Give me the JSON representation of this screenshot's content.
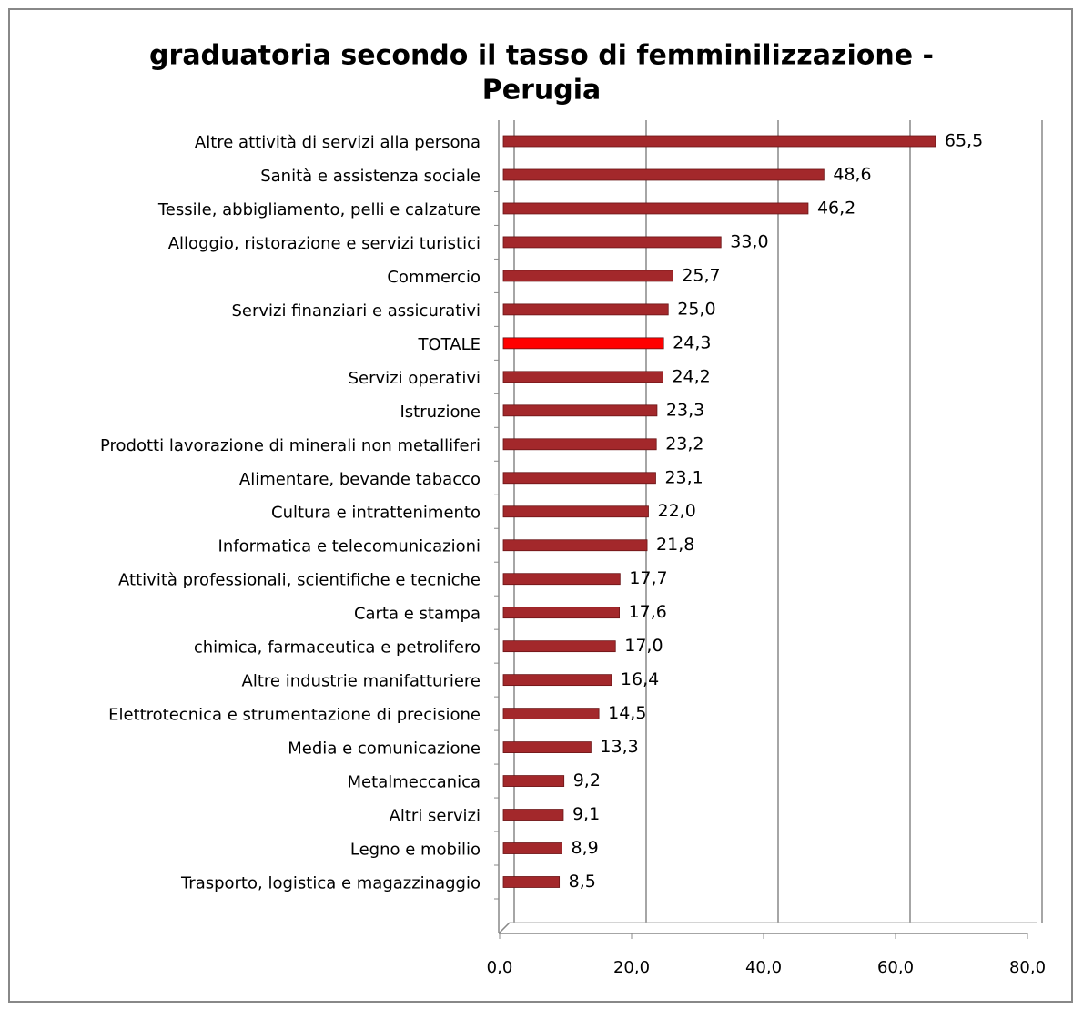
{
  "chart_data": {
    "type": "bar",
    "orientation": "horizontal",
    "title": [
      "graduatoria secondo il tasso di femminilizzazione -",
      "Perugia"
    ],
    "categories": [
      "Altre attività di servizi alla persona",
      "Sanità e assistenza sociale",
      "Tessile, abbigliamento, pelli e calzature",
      "Alloggio,  ristorazione e  servizi turistici",
      "Commercio",
      "Servizi finanziari e assicurativi",
      "TOTALE",
      "Servizi operativi",
      "Istruzione",
      "Prodotti lavorazione di minerali non metalliferi",
      "Alimentare, bevande tabacco",
      "Cultura e intrattenimento",
      "Informatica e telecomunicazioni",
      "Attività professionali, scientifiche e tecniche",
      "Carta e stampa",
      "chimica, farmaceutica e petrolifero",
      "Altre industrie manifatturiere",
      "Elettrotecnica  e strumentazione di precisione",
      "Media e comunicazione",
      "Metalmeccanica",
      "Altri servizi",
      "Legno e mobilio",
      "Trasporto, logistica e  magazzinaggio"
    ],
    "values": [
      65.5,
      48.6,
      46.2,
      33.0,
      25.7,
      25.0,
      24.3,
      24.2,
      23.3,
      23.2,
      23.1,
      22.0,
      21.8,
      17.7,
      17.6,
      17.0,
      16.4,
      14.5,
      13.3,
      9.2,
      9.1,
      8.9,
      8.5
    ],
    "value_labels": [
      "65,5",
      "48,6",
      "46,2",
      "33,0",
      "25,7",
      "25,0",
      "24,3",
      "24,2",
      "23,3",
      "23,2",
      "23,1",
      "22,0",
      "21,8",
      "17,7",
      "17,6",
      "17,0",
      "16,4",
      "14,5",
      "13,3",
      "9,2",
      "9,1",
      "8,9",
      "8,5"
    ],
    "colors": [
      "#a3282b",
      "#a3282b",
      "#a3282b",
      "#a3282b",
      "#a3282b",
      "#a3282b",
      "#ff0000",
      "#a3282b",
      "#a3282b",
      "#a3282b",
      "#a3282b",
      "#a3282b",
      "#a3282b",
      "#a3282b",
      "#a3282b",
      "#a3282b",
      "#a3282b",
      "#a3282b",
      "#a3282b",
      "#a3282b",
      "#a3282b",
      "#a3282b",
      "#a3282b"
    ],
    "xlim": [
      0,
      80
    ],
    "xticks": [
      {
        "value": 0,
        "label": "0,0"
      },
      {
        "value": 20,
        "label": "20,0"
      },
      {
        "value": 40,
        "label": "40,0"
      },
      {
        "value": 60,
        "label": "60,0"
      },
      {
        "value": 80,
        "label": "80,0"
      }
    ],
    "grid": true
  }
}
